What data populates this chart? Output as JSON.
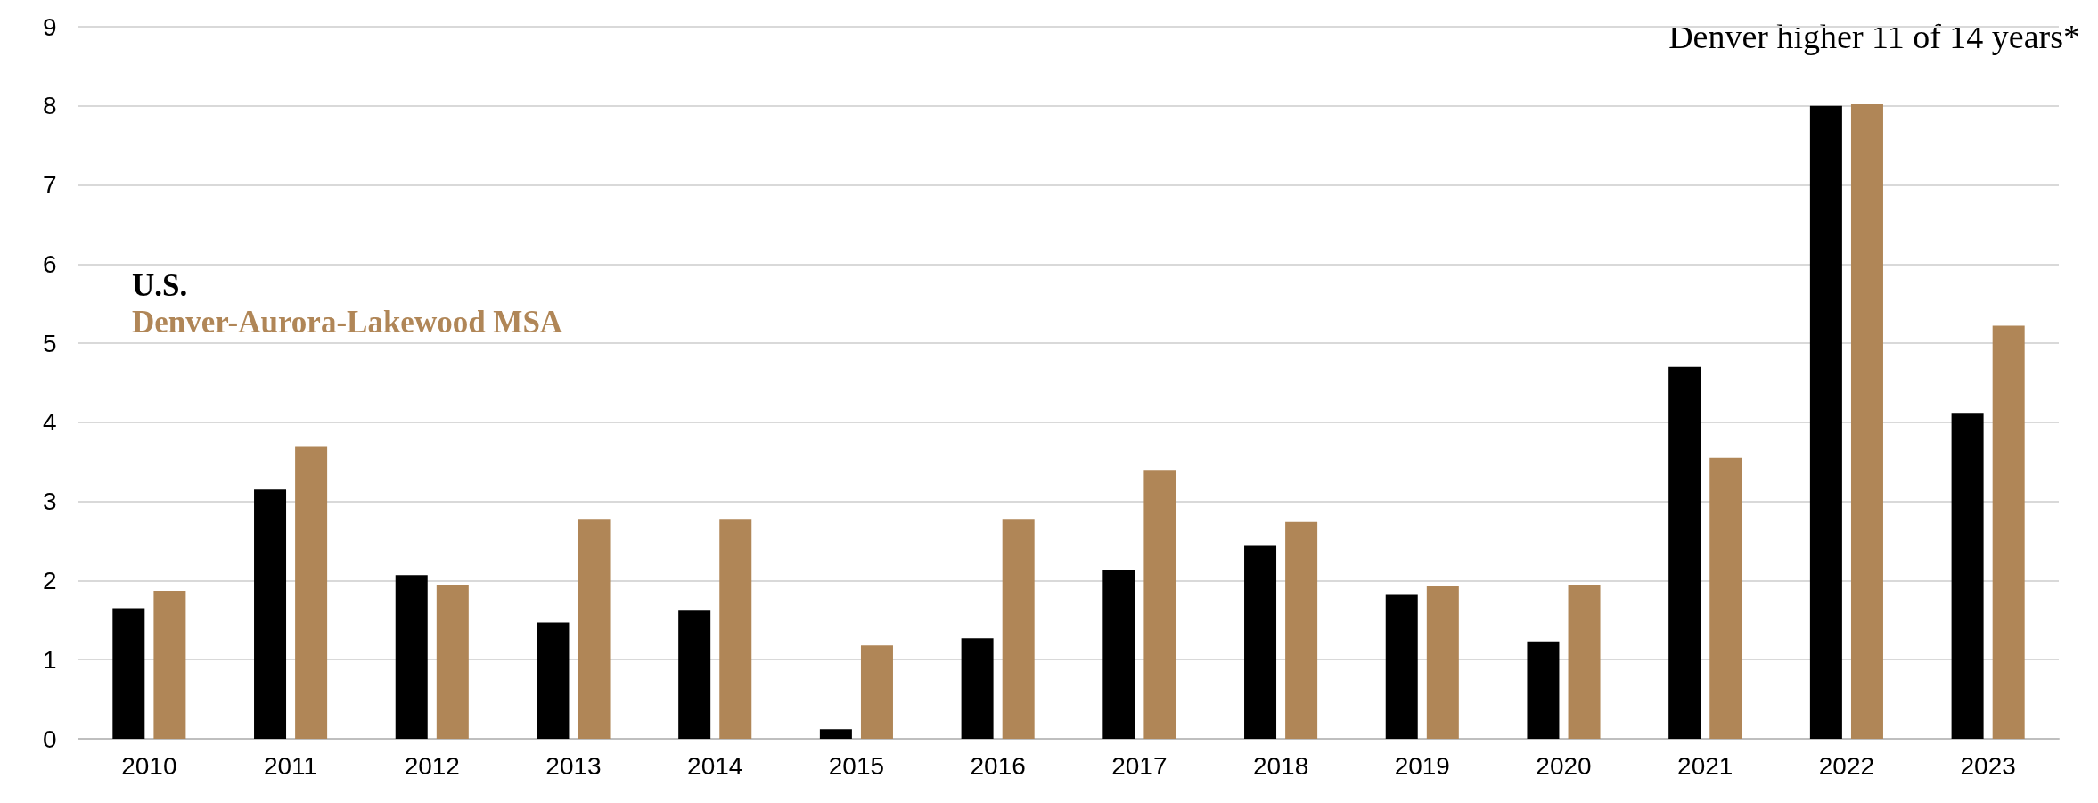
{
  "chart_data": {
    "type": "bar",
    "categories": [
      "2010",
      "2011",
      "2012",
      "2013",
      "2014",
      "2015",
      "2016",
      "2017",
      "2018",
      "2019",
      "2020",
      "2021",
      "2022",
      "2023"
    ],
    "series": [
      {
        "name": "U.S.",
        "color": "#000000",
        "values": [
          1.65,
          3.15,
          2.07,
          1.47,
          1.62,
          0.12,
          1.27,
          2.13,
          2.44,
          1.82,
          1.23,
          4.7,
          8.0,
          4.12
        ]
      },
      {
        "name": "Denver-Aurora-Lakewood MSA",
        "color": "#b08657",
        "values": [
          1.87,
          3.7,
          1.95,
          2.78,
          2.78,
          1.18,
          2.78,
          3.4,
          2.74,
          1.93,
          1.95,
          3.55,
          8.02,
          5.22
        ]
      }
    ],
    "ylim": [
      0,
      9
    ],
    "yticks": [
      0,
      1,
      2,
      3,
      4,
      5,
      6,
      7,
      8,
      9
    ],
    "grid": "y",
    "legend": "top left",
    "annotations": [
      "Denver higher 11 of 14 years*"
    ]
  }
}
